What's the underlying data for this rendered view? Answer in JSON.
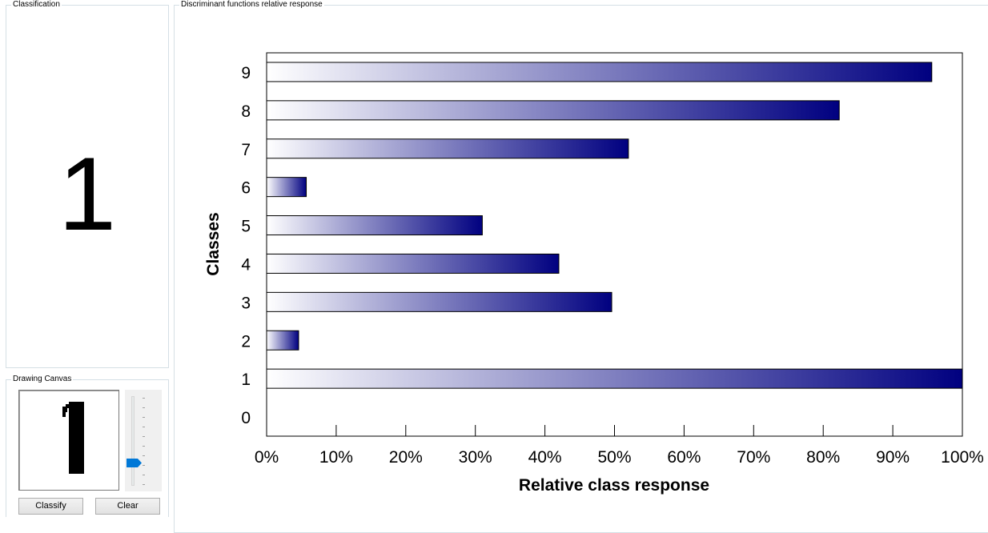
{
  "classification": {
    "title": "Classification",
    "result": "1"
  },
  "drawing": {
    "title": "Drawing Canvas",
    "classify_label": "Classify",
    "clear_label": "Clear",
    "slider_value": 0.28
  },
  "chart_panel": {
    "title": "Discriminant functions relative response"
  },
  "colors": {
    "bar_start": "#ffffff",
    "bar_end": "#000080",
    "slider_thumb": "#0078d7"
  },
  "chart_data": {
    "type": "bar",
    "orientation": "horizontal",
    "categories": [
      "0",
      "1",
      "2",
      "3",
      "4",
      "5",
      "6",
      "7",
      "8",
      "9"
    ],
    "values": [
      0,
      100,
      4.6,
      49.6,
      42,
      31,
      5.7,
      52,
      82.3,
      95.6
    ],
    "xlabel": "Relative class response",
    "ylabel": "Classes",
    "xlim": [
      0,
      100
    ],
    "xticks": [
      "0%",
      "10%",
      "20%",
      "30%",
      "40%",
      "50%",
      "60%",
      "70%",
      "80%",
      "90%",
      "100%"
    ],
    "grid": false,
    "legend": "none"
  }
}
